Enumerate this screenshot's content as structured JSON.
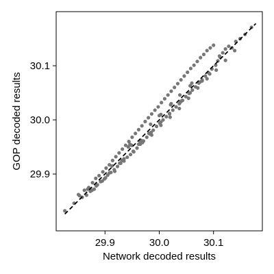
{
  "chart_data": {
    "type": "scatter",
    "title": "",
    "xlabel": "Network decoded results",
    "ylabel": "GOP decoded results",
    "xlim": [
      29.81,
      30.19
    ],
    "ylim": [
      29.795,
      30.2
    ],
    "xticks": [
      29.9,
      30.0,
      30.1
    ],
    "yticks": [
      29.9,
      30.0,
      30.1
    ],
    "xtick_labels": [
      "29.9",
      "30.0",
      "30.1"
    ],
    "ytick_labels": [
      "29.9",
      "30.0",
      "30.1"
    ],
    "grid": false,
    "legend": "none",
    "point_color": "#777777",
    "line_color": "#000000",
    "reference_line": {
      "style": "dashed",
      "x": [
        29.826,
        30.178
      ],
      "y": [
        29.826,
        30.178
      ]
    },
    "series": [
      {
        "x": [
          29.826,
          29.843,
          29.851,
          29.858,
          29.862,
          29.866,
          29.87,
          29.873,
          29.877,
          29.88,
          29.883,
          29.886,
          29.889,
          29.892,
          29.896,
          29.899,
          29.902,
          29.905,
          29.908,
          29.911,
          29.914,
          29.917,
          29.92,
          29.923,
          29.926,
          29.929,
          29.932,
          29.935,
          29.938,
          29.941,
          29.944,
          29.947,
          29.95,
          29.953,
          29.956,
          29.959,
          29.962,
          29.965,
          29.968,
          29.971,
          29.974,
          29.977,
          29.98,
          29.983,
          29.986,
          29.989,
          29.992,
          29.995,
          29.998,
          30.001,
          30.004,
          30.007,
          30.01,
          30.013,
          30.016,
          30.019,
          30.022,
          30.025,
          30.028,
          30.031,
          30.034,
          30.037,
          30.04,
          30.043,
          30.046,
          30.049,
          30.052,
          30.055,
          30.058,
          30.061,
          30.064,
          30.067,
          30.07,
          30.073,
          30.076,
          30.079,
          30.082,
          30.085,
          30.088,
          30.091,
          30.094,
          30.097,
          30.1,
          30.104,
          30.108,
          30.112,
          30.117,
          30.122,
          30.128,
          30.134,
          30.141,
          30.149,
          30.158,
          30.17,
          29.853,
          29.868,
          29.884,
          29.901,
          29.918,
          29.935,
          29.952,
          29.969,
          29.986,
          30.003,
          30.02,
          30.037,
          30.054,
          30.071,
          30.088,
          30.105,
          30.122,
          30.139,
          29.876,
          29.895,
          29.913,
          29.931,
          29.949,
          29.967,
          29.985,
          30.003,
          30.021,
          30.039,
          30.057,
          30.075,
          30.093,
          30.111,
          29.908,
          29.927,
          29.946,
          29.965,
          29.984,
          30.003,
          30.022,
          30.041,
          30.06,
          30.079,
          29.943,
          29.962,
          29.981,
          30.0,
          30.019,
          30.038,
          30.057
        ],
        "y": [
          29.832,
          29.846,
          29.862,
          29.857,
          29.87,
          29.861,
          29.875,
          29.868,
          29.884,
          29.872,
          29.892,
          29.88,
          29.897,
          29.886,
          29.904,
          29.891,
          29.911,
          29.898,
          29.917,
          29.903,
          29.925,
          29.908,
          29.932,
          29.914,
          29.939,
          29.92,
          29.946,
          29.924,
          29.953,
          29.931,
          29.96,
          29.936,
          29.968,
          29.941,
          29.975,
          29.948,
          29.982,
          29.955,
          29.989,
          29.961,
          29.997,
          29.968,
          30.004,
          29.974,
          30.011,
          29.981,
          30.018,
          29.988,
          30.024,
          29.994,
          30.032,
          30.0,
          30.039,
          30.006,
          30.046,
          30.011,
          30.053,
          30.018,
          30.06,
          30.024,
          30.067,
          30.03,
          30.074,
          30.036,
          30.081,
          30.043,
          30.088,
          30.049,
          30.095,
          30.055,
          30.101,
          30.061,
          30.108,
          30.068,
          30.115,
          30.074,
          30.121,
          30.081,
          30.128,
          30.087,
          30.133,
          30.094,
          30.138,
          30.101,
          30.109,
          30.116,
          30.124,
          30.131,
          30.136,
          30.133,
          30.145,
          30.15,
          30.158,
          30.171,
          29.86,
          29.872,
          29.878,
          29.893,
          29.905,
          29.928,
          29.942,
          29.958,
          29.972,
          29.99,
          30.005,
          30.021,
          30.04,
          30.059,
          30.076,
          30.092,
          30.11,
          30.128,
          29.87,
          29.887,
          29.915,
          29.925,
          29.953,
          29.962,
          29.977,
          30.01,
          30.028,
          30.033,
          30.063,
          30.07,
          30.085,
          30.118,
          29.902,
          29.92,
          29.955,
          29.96,
          29.992,
          29.996,
          30.03,
          30.035,
          30.068,
          30.072,
          29.95,
          29.955,
          29.975,
          30.008,
          30.012,
          30.046,
          30.05
        ]
      }
    ]
  }
}
